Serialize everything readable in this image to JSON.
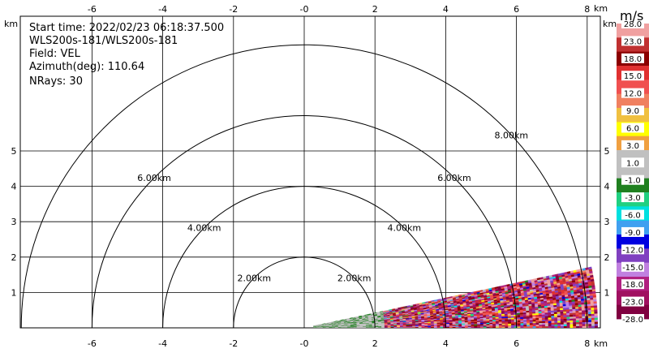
{
  "header": {
    "start_time": "Start time: 2022/02/23 06:18:37.500",
    "radar": "WLS200s-181/WLS200s-181",
    "field": "Field: VEL",
    "azimuth": "Azimuth(deg): 110.64",
    "nrays": "NRays: 30"
  },
  "chart_data": {
    "type": "heatmap",
    "subtype": "RHI scan",
    "x_unit": "km",
    "y_unit": "km",
    "xlim": [
      -8.5,
      8.4
    ],
    "ylim": [
      0,
      5.9
    ],
    "x_ticks": [
      -6,
      -4,
      -2,
      0,
      2,
      4,
      6,
      8
    ],
    "x_tick_labels": [
      "-6",
      "-4",
      "-2",
      "-0",
      "2",
      "4",
      "6",
      "8"
    ],
    "y_ticks": [
      1,
      2,
      3,
      4,
      5
    ],
    "grid": true,
    "range_rings_km": [
      2,
      4,
      6,
      8
    ],
    "ring_labels": [
      "2.00km",
      "4.00km",
      "6.00km",
      "8.00km"
    ],
    "scan": {
      "origin_km": [
        0,
        0
      ],
      "elevation_deg_min": 0,
      "elevation_deg_max": 12,
      "max_range_km": 8.3
    },
    "colorbar": {
      "unit": "m/s",
      "labels": [
        "28.0",
        "23.0",
        "18.0",
        "15.0",
        "12.0",
        "9.0",
        "6.0",
        "3.0",
        "1.0",
        "-1.0",
        "-3.0",
        "-6.0",
        "-9.0",
        "-12.0",
        "-15.0",
        "-18.0",
        "-23.0",
        "-28.0"
      ],
      "colors": [
        "#f0a0a0",
        "#c03030",
        "#8b0000",
        "#e03030",
        "#f05050",
        "#f08060",
        "#f0c040",
        "#ffff00",
        "#f0a040",
        "#c0c0c0",
        "#c0c0c0",
        "#208020",
        "#20d080",
        "#00e0e0",
        "#40a0f0",
        "#0000e0",
        "#8040c0",
        "#c080e0",
        "#b02080",
        "#a01060",
        "#800040"
      ]
    }
  }
}
